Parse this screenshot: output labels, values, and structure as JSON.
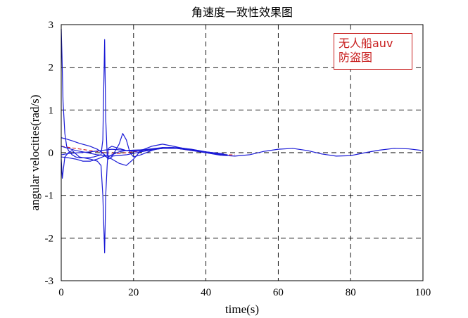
{
  "chart_data": {
    "type": "line",
    "title": "角速度一致性效果图",
    "xlabel": "time(s)",
    "ylabel": "angular velocities(rad/s)",
    "xlim": [
      0,
      100
    ],
    "ylim": [
      -3,
      3
    ],
    "xticks": [
      0,
      20,
      40,
      60,
      80,
      100
    ],
    "yticks": [
      -3,
      -2,
      -1,
      0,
      1,
      2,
      3
    ],
    "grid": true,
    "colors": {
      "main": "#1a1ad6",
      "reference": "#d42020"
    },
    "series": [
      {
        "x": [
          0,
          0.2,
          0.5,
          1,
          1.5,
          2,
          3,
          4,
          5,
          7,
          9,
          11,
          11.5,
          12,
          12.3,
          12.7,
          13,
          14,
          16,
          18,
          20,
          24,
          28,
          32,
          36,
          40,
          44,
          48,
          52,
          56,
          60,
          64,
          68,
          72,
          76,
          80,
          84,
          88,
          92,
          96,
          100
        ],
        "values": [
          2.9,
          2.3,
          1.2,
          0.45,
          0.15,
          0.05,
          -0.05,
          -0.1,
          -0.12,
          -0.12,
          -0.1,
          -0.05,
          0.3,
          2.65,
          0.8,
          -0.05,
          -0.1,
          -0.05,
          0.02,
          0.05,
          0.06,
          0.07,
          0.1,
          0.1,
          0.06,
          0.0,
          -0.06,
          -0.08,
          -0.05,
          0.03,
          0.08,
          0.1,
          0.05,
          -0.03,
          -0.08,
          -0.07,
          0.0,
          0.06,
          0.1,
          0.09,
          0.05
        ]
      },
      {
        "x": [
          0,
          0.3,
          1,
          2,
          3,
          5,
          8,
          10,
          11,
          11.5,
          12,
          12.3,
          12.7,
          13,
          14,
          16,
          18,
          20,
          24,
          28,
          32,
          36,
          40,
          44
        ],
        "values": [
          -0.15,
          -0.6,
          -0.1,
          0.0,
          0.05,
          -0.1,
          -0.15,
          -0.2,
          -0.3,
          -1.0,
          -2.35,
          -1.0,
          -0.3,
          0.1,
          0.15,
          0.1,
          0.05,
          0.05,
          0.08,
          0.12,
          0.1,
          0.05,
          0.0,
          -0.05
        ]
      },
      {
        "x": [
          0,
          1,
          3,
          5,
          8,
          10,
          12,
          13,
          14,
          15,
          16,
          17,
          18,
          19,
          20,
          22,
          25,
          28,
          31,
          35,
          40,
          45
        ],
        "values": [
          0.35,
          0.33,
          0.28,
          0.22,
          0.15,
          0.08,
          -0.05,
          -0.15,
          -0.1,
          0.05,
          0.2,
          0.45,
          0.3,
          0.0,
          -0.1,
          -0.05,
          0.05,
          0.12,
          0.12,
          0.08,
          0.0,
          -0.05
        ]
      },
      {
        "x": [
          0,
          2,
          4,
          6,
          8,
          10,
          12,
          14,
          16,
          18,
          20,
          22,
          25,
          28,
          31,
          35,
          40,
          45
        ],
        "values": [
          -0.1,
          -0.12,
          -0.15,
          -0.2,
          -0.2,
          -0.15,
          -0.08,
          -0.15,
          -0.25,
          -0.3,
          -0.15,
          0.05,
          0.15,
          0.2,
          0.15,
          0.08,
          0.02,
          -0.03
        ]
      },
      {
        "x": [
          0,
          2,
          5,
          8,
          11,
          14,
          17,
          20,
          24,
          28,
          32,
          36,
          40,
          44
        ],
        "values": [
          -0.05,
          -0.02,
          0.0,
          0.02,
          0.05,
          0.08,
          0.06,
          0.03,
          0.05,
          0.1,
          0.12,
          0.08,
          0.02,
          -0.02
        ]
      },
      {
        "x": [
          0,
          2,
          4,
          6,
          10,
          14,
          18,
          22,
          26,
          30,
          34,
          38,
          42,
          46
        ],
        "values": [
          0.15,
          0.1,
          0.05,
          0.02,
          -0.05,
          -0.08,
          -0.05,
          0.02,
          0.08,
          0.12,
          0.1,
          0.05,
          -0.02,
          -0.05
        ]
      }
    ],
    "reference_series": {
      "x": [
        0,
        4,
        8,
        12,
        16,
        20,
        24,
        28,
        32,
        36,
        40,
        44,
        48
      ],
      "values": [
        0.15,
        0.1,
        0.05,
        0.0,
        -0.02,
        0.02,
        0.06,
        0.1,
        0.1,
        0.05,
        0.0,
        -0.05,
        -0.05
      ]
    }
  },
  "watermark": {
    "line1": "无人船auv",
    "line2": "防盗图"
  }
}
